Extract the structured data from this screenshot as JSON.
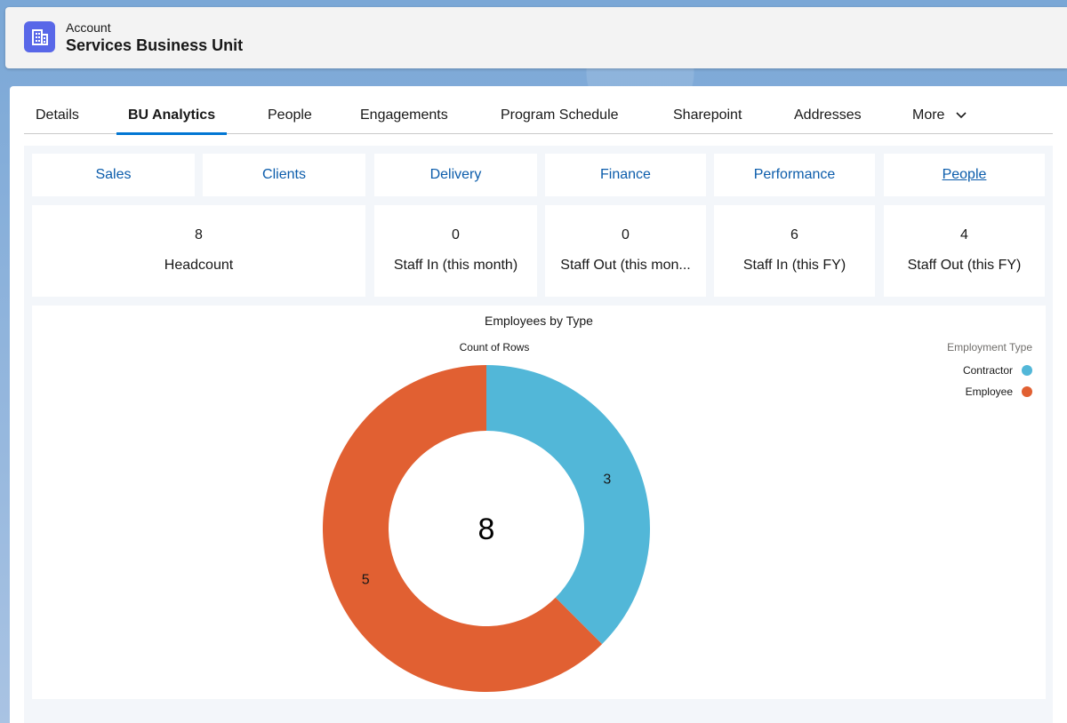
{
  "header": {
    "object_type": "Account",
    "title": "Services Business Unit",
    "icon": "building-icon"
  },
  "tabs": [
    {
      "label": "Details"
    },
    {
      "label": "BU Analytics",
      "active": true
    },
    {
      "label": "People"
    },
    {
      "label": "Engagements"
    },
    {
      "label": "Program Schedule"
    },
    {
      "label": "Sharepoint"
    },
    {
      "label": "Addresses"
    },
    {
      "label": "More"
    }
  ],
  "nav_tiles": [
    {
      "label": "Sales"
    },
    {
      "label": "Clients"
    },
    {
      "label": "Delivery"
    },
    {
      "label": "Finance"
    },
    {
      "label": "Performance"
    },
    {
      "label": "People"
    }
  ],
  "stats": [
    {
      "value": "8",
      "label": "Headcount"
    },
    {
      "value": "0",
      "label": "Staff In (this month)"
    },
    {
      "value": "0",
      "label": "Staff Out (this mon..."
    },
    {
      "value": "6",
      "label": "Staff In (this FY)"
    },
    {
      "value": "4",
      "label": "Staff Out (this FY)"
    }
  ],
  "chart": {
    "title": "Employees by Type",
    "subtitle": "Count of Rows",
    "legend_title": "Employment Type",
    "total_label": "8"
  },
  "chart_data": {
    "type": "pie",
    "title": "Employees by Type",
    "measure": "Count of Rows",
    "legend_title": "Employment Type",
    "legend_position": "top-right",
    "donut": true,
    "center_total": 8,
    "categories": [
      "Contractor",
      "Employee"
    ],
    "values": [
      3,
      5
    ],
    "colors": [
      "#52b7d8",
      "#e16032"
    ]
  }
}
